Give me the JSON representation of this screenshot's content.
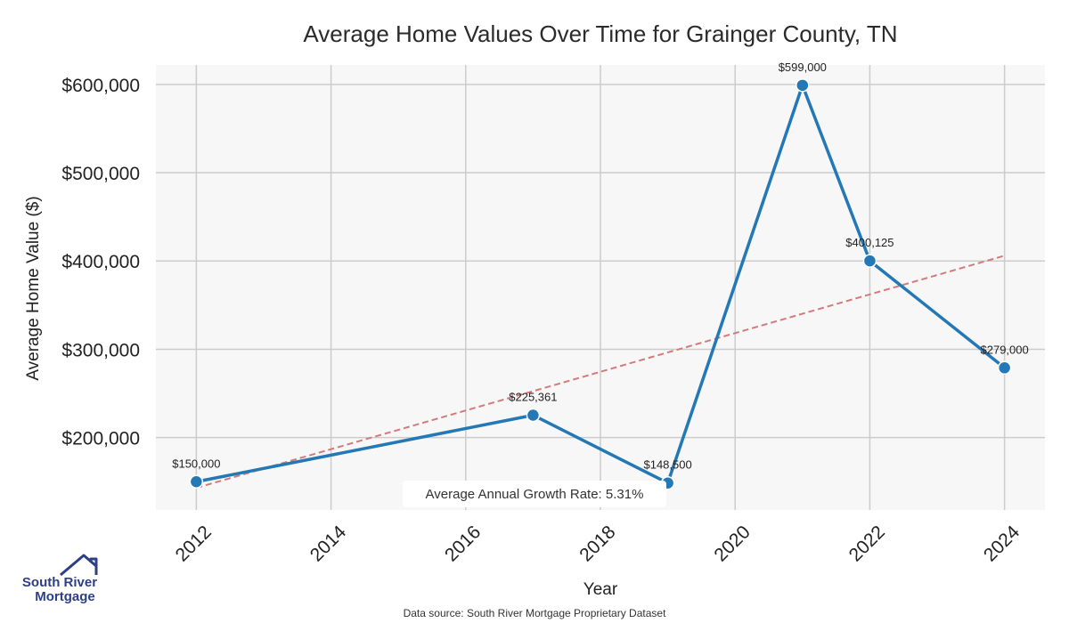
{
  "chart_data": {
    "type": "line",
    "title": "Average Home Values Over Time for Grainger County, TN",
    "xlabel": "Year",
    "ylabel": "Average Home Value ($)",
    "x": [
      2012,
      2017,
      2019,
      2021,
      2022,
      2024
    ],
    "series": [
      {
        "name": "Average Home Value",
        "values": [
          150000,
          225361,
          148500,
          599000,
          400125,
          279000
        ],
        "labels": [
          "$150,000",
          "$225,361",
          "$148,500",
          "$599,000",
          "$400,125",
          "$279,000"
        ],
        "color": "#2378b5"
      }
    ],
    "trend_line": {
      "name": "Trend",
      "start": [
        2012,
        143000
      ],
      "end": [
        2024,
        406000
      ],
      "color": "#d37b7b",
      "style": "dashed"
    },
    "xlim": [
      2011.4,
      2024.6
    ],
    "ylim": [
      118000,
      622000
    ],
    "x_ticks": [
      2012,
      2014,
      2016,
      2018,
      2020,
      2022,
      2024
    ],
    "x_tick_labels": [
      "2012",
      "2014",
      "2016",
      "2018",
      "2020",
      "2022",
      "2024"
    ],
    "y_ticks": [
      200000,
      300000,
      400000,
      500000,
      600000
    ],
    "y_tick_labels": [
      "$200,000",
      "$300,000",
      "$400,000",
      "$500,000",
      "$600,000"
    ],
    "grid": true,
    "annotation": "Average Annual Growth Rate: 5.31%",
    "source_note": "Data source: South River Mortgage Proprietary Dataset"
  },
  "logo": {
    "line1": "South River",
    "line2": "Mortgage"
  },
  "colors": {
    "plot_background": "#f7f7f7",
    "grid": "#cccccc",
    "line": "#2378b5",
    "trend": "#d37b7b",
    "logo": "#2d3f86"
  }
}
